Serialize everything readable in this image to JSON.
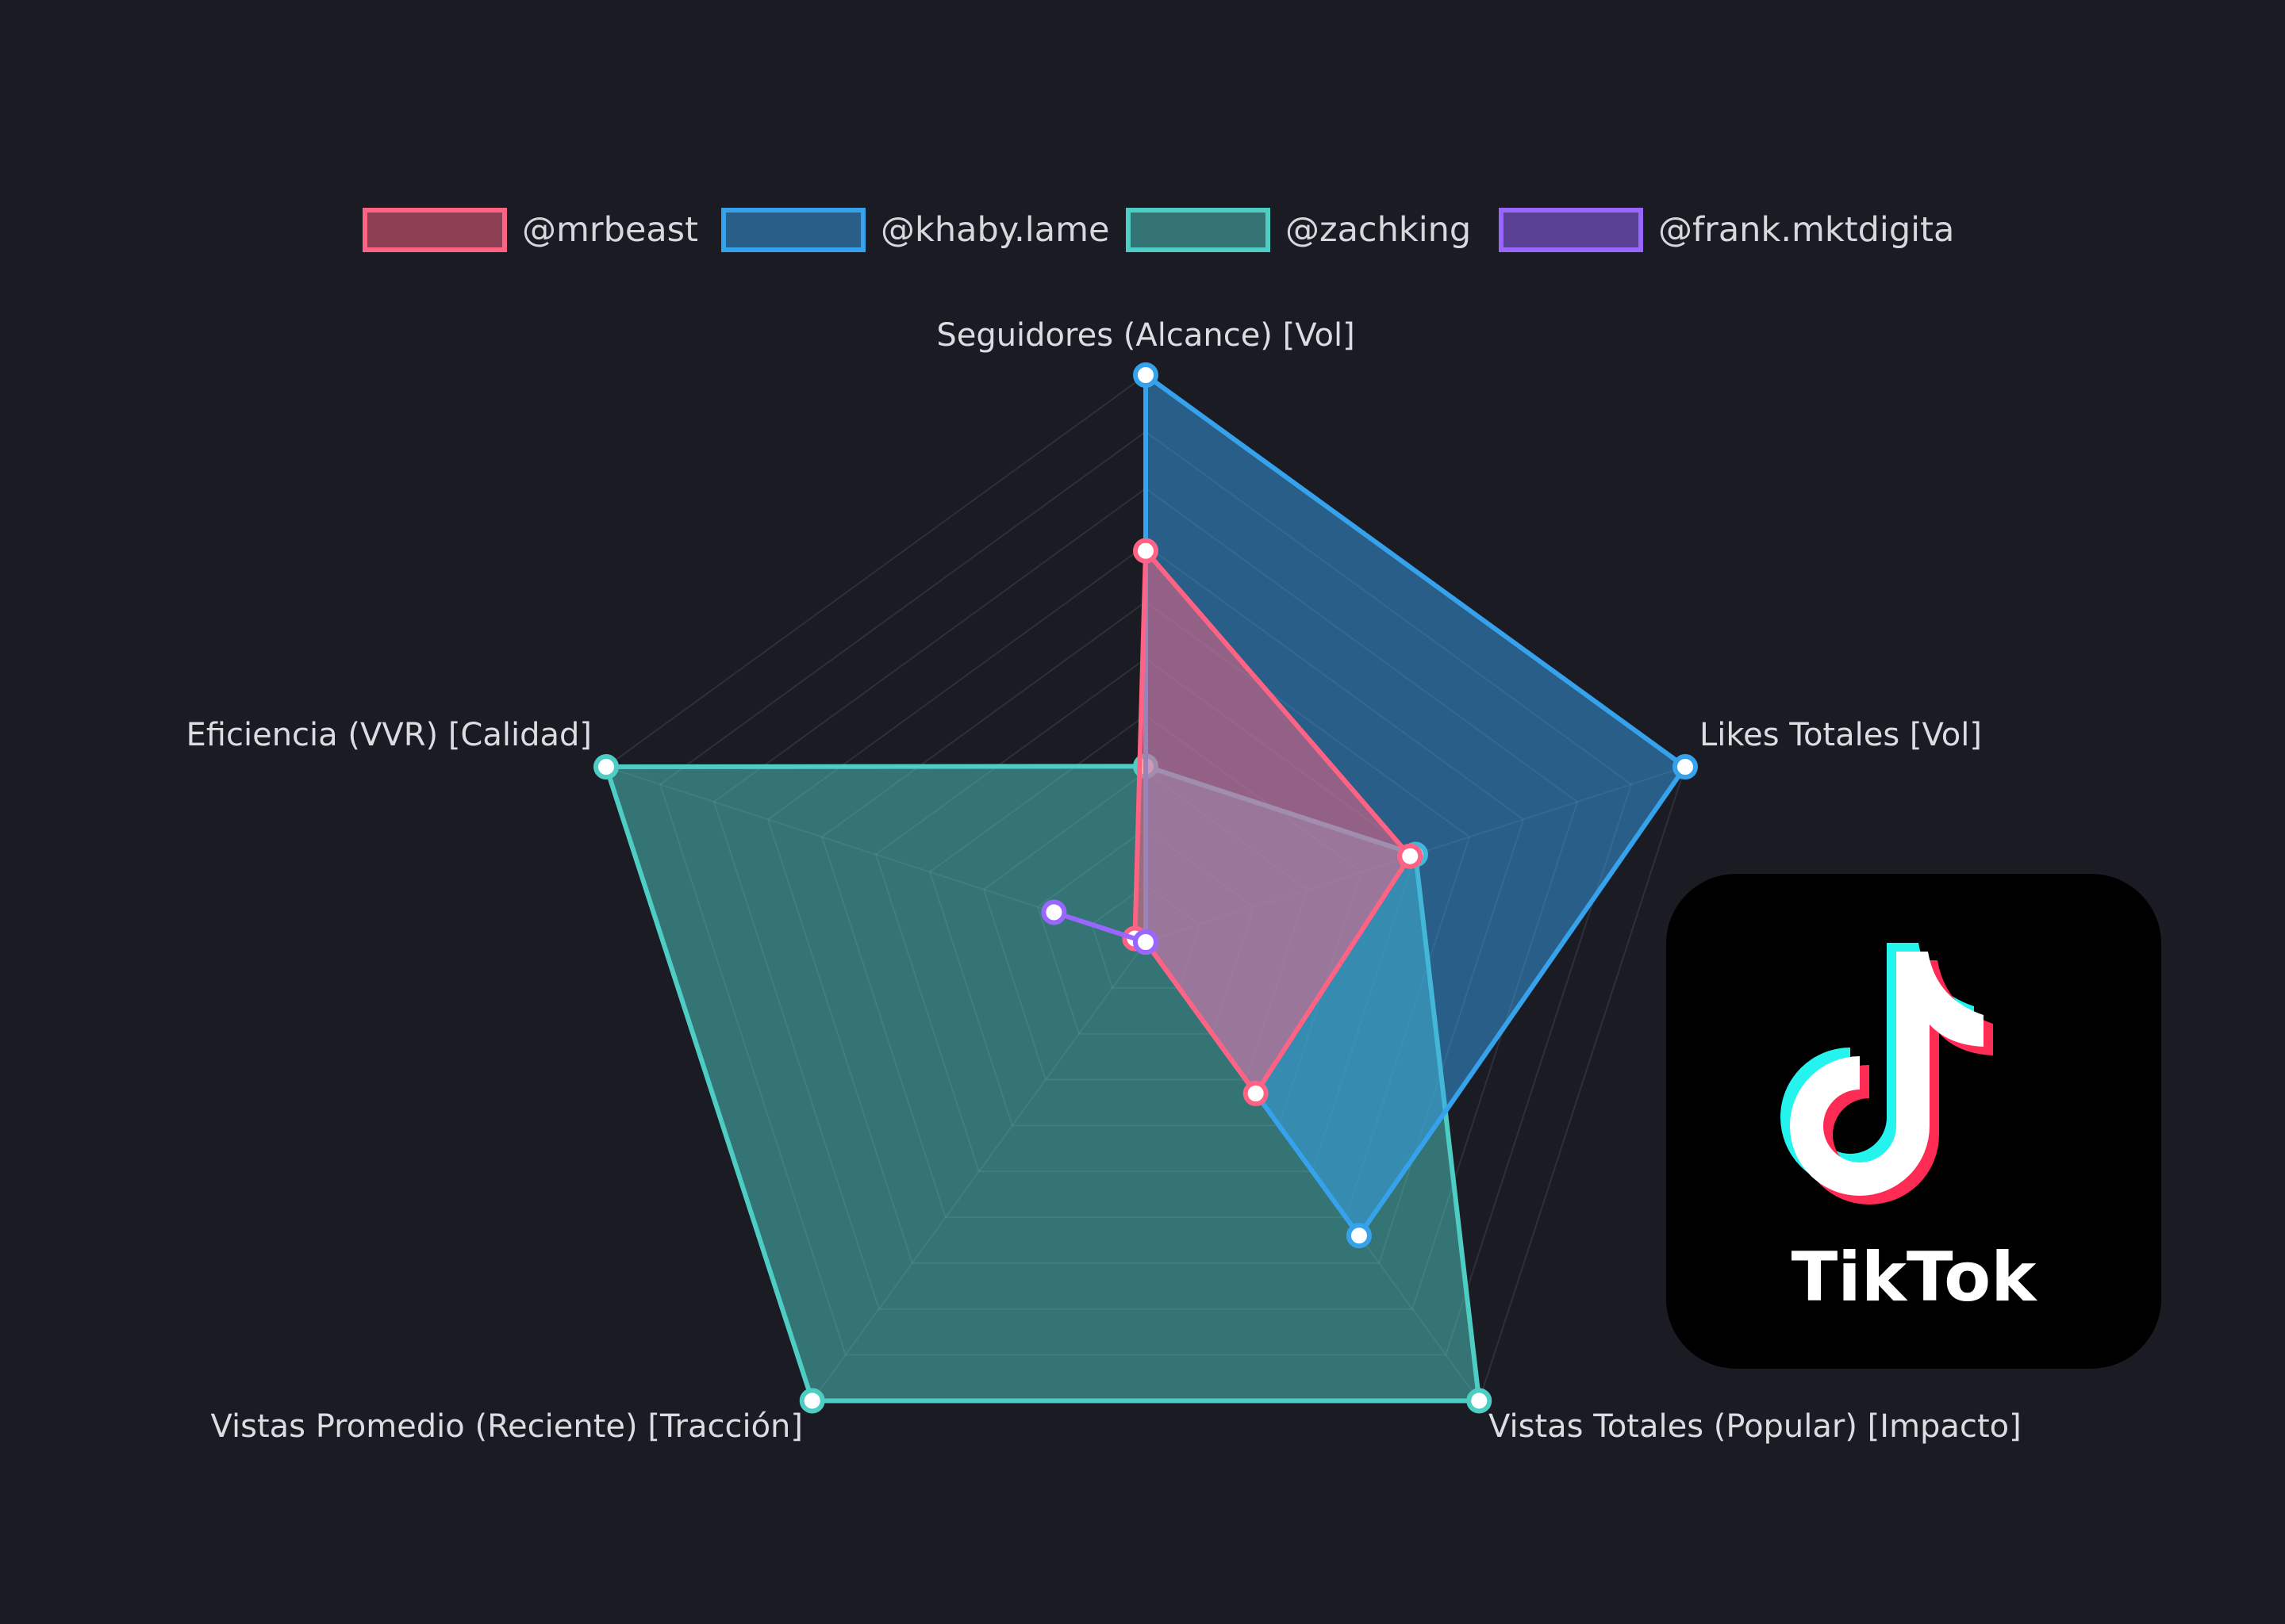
{
  "chart_data": {
    "type": "radar",
    "axes": [
      "Seguidores (Alcance) [Vol]",
      "Likes Totales [Vol]",
      "Vistas Totales (Popular) [Impacto]",
      "Vistas Promedio (Reciente) [Tracción]",
      "Eficiencia (VVR) [Calidad]"
    ],
    "scale": [
      0,
      100
    ],
    "grid_levels": 10,
    "legend_position": "top",
    "series": [
      {
        "name": "@zachking",
        "color": "#4ecdc4",
        "values": [
          31,
          50,
          100,
          100,
          100
        ]
      },
      {
        "name": "@khaby.lame",
        "color": "#36a2eb",
        "values": [
          100,
          100,
          64,
          0,
          0
        ]
      },
      {
        "name": "@mrbeast",
        "color": "#ff6384",
        "values": [
          69,
          49,
          33,
          0,
          2
        ]
      },
      {
        "name": "@frank.mktdigita",
        "color": "#9966ff",
        "values": [
          0,
          0,
          0,
          0,
          17
        ]
      }
    ],
    "legend_order": [
      "@mrbeast",
      "@khaby.lame",
      "@zachking",
      "@frank.mktdigita"
    ]
  },
  "logo": {
    "text": "TikTok"
  }
}
